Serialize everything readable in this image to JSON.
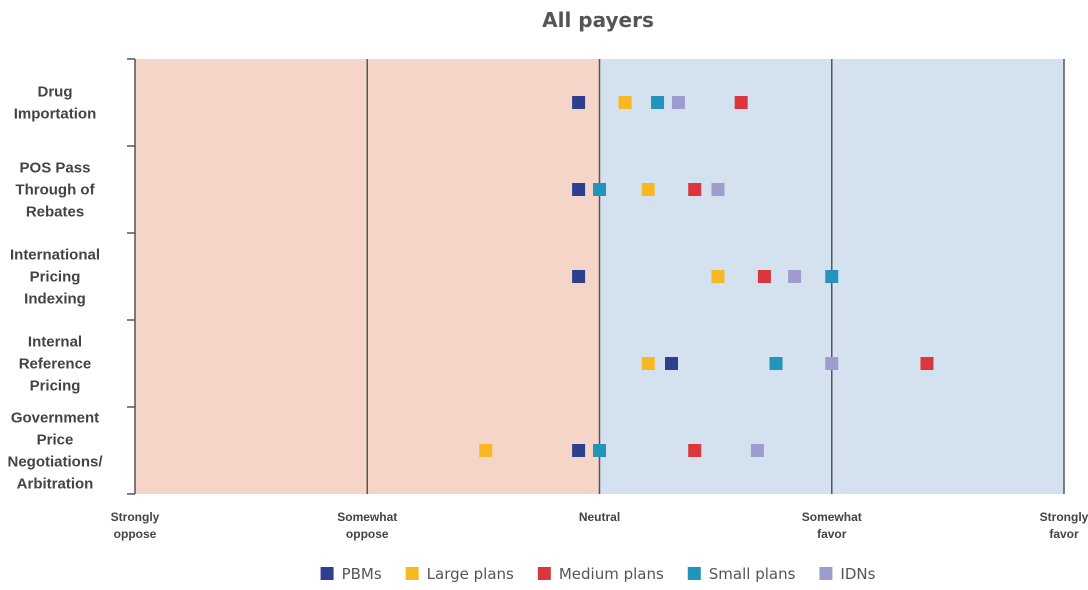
{
  "chart_data": {
    "type": "scatter",
    "title": "All payers",
    "x_ticks": [
      {
        "value": 0,
        "lines": [
          "Strongly",
          "oppose"
        ]
      },
      {
        "value": 1,
        "lines": [
          "Somewhat",
          "oppose"
        ]
      },
      {
        "value": 2,
        "lines": [
          "Neutral"
        ]
      },
      {
        "value": 3,
        "lines": [
          "Somewhat",
          "favor"
        ]
      },
      {
        "value": 4,
        "lines": [
          "Strongly",
          "favor"
        ]
      }
    ],
    "xlim": [
      0,
      4
    ],
    "regions": [
      {
        "from": 0,
        "to": 2,
        "color": "#f5d5c8"
      },
      {
        "from": 2,
        "to": 4,
        "color": "#d3e2ee"
      }
    ],
    "categories": [
      {
        "lines": [
          "Drug",
          "Importation"
        ]
      },
      {
        "lines": [
          "POS Pass",
          "Through of",
          "Rebates"
        ]
      },
      {
        "lines": [
          "International",
          "Pricing",
          "Indexing"
        ]
      },
      {
        "lines": [
          "Internal",
          "Reference",
          "Pricing"
        ]
      },
      {
        "lines": [
          "Government",
          "Price",
          "Negotiations/",
          "Arbitration"
        ]
      }
    ],
    "series": [
      {
        "name": "PBMs",
        "color": "#2e3f8f",
        "values": [
          1.91,
          1.91,
          1.91,
          2.31,
          1.91
        ]
      },
      {
        "name": "Large plans",
        "color": "#f7b824",
        "values": [
          2.11,
          2.21,
          2.51,
          2.21,
          1.51
        ]
      },
      {
        "name": "Medium plans",
        "color": "#d9363e",
        "values": [
          2.61,
          2.41,
          2.71,
          3.41,
          2.41
        ]
      },
      {
        "name": "Small plans",
        "color": "#2395bd",
        "values": [
          2.25,
          2.0,
          3.0,
          2.76,
          2.0
        ]
      },
      {
        "name": "IDNs",
        "color": "#9e9ccc",
        "values": [
          2.34,
          2.51,
          2.84,
          3.0,
          2.68
        ]
      }
    ]
  }
}
